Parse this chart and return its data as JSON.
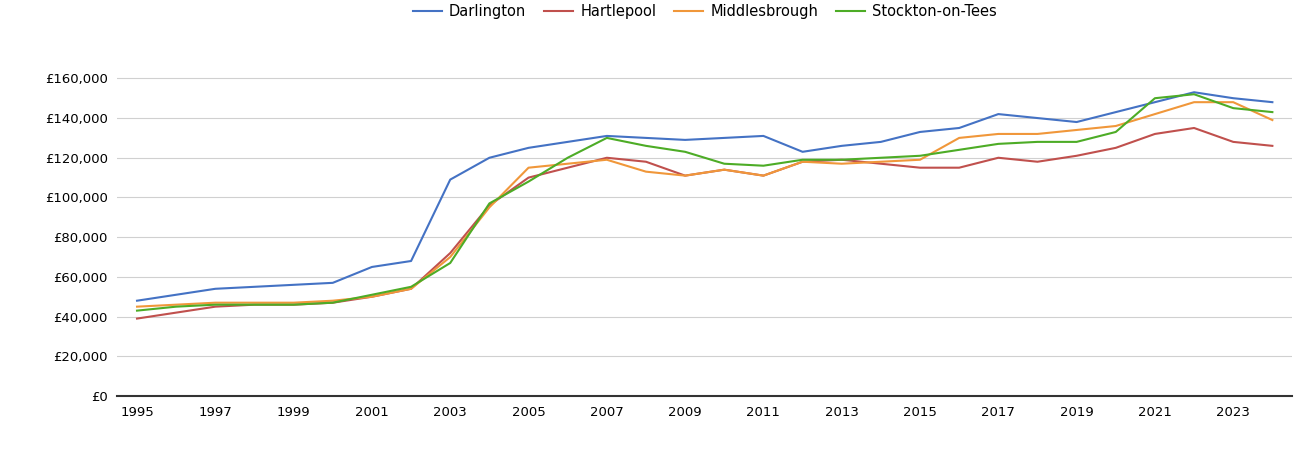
{
  "years": [
    1995,
    1996,
    1997,
    1998,
    1999,
    2000,
    2001,
    2002,
    2003,
    2004,
    2005,
    2006,
    2007,
    2008,
    2009,
    2010,
    2011,
    2012,
    2013,
    2014,
    2015,
    2016,
    2017,
    2018,
    2019,
    2020,
    2021,
    2022,
    2023,
    2024
  ],
  "darlington": [
    48000,
    51000,
    54000,
    55000,
    56000,
    57000,
    65000,
    68000,
    109000,
    120000,
    125000,
    128000,
    131000,
    130000,
    129000,
    130000,
    131000,
    123000,
    126000,
    128000,
    133000,
    135000,
    142000,
    140000,
    138000,
    143000,
    148000,
    153000,
    150000,
    148000
  ],
  "hartlepool": [
    39000,
    42000,
    45000,
    46000,
    46000,
    47000,
    50000,
    54000,
    72000,
    96000,
    110000,
    115000,
    120000,
    118000,
    111000,
    114000,
    111000,
    118000,
    119000,
    117000,
    115000,
    115000,
    120000,
    118000,
    121000,
    125000,
    132000,
    135000,
    128000,
    126000
  ],
  "middlesbrough": [
    45000,
    46000,
    47000,
    47000,
    47000,
    48000,
    50000,
    54000,
    70000,
    95000,
    115000,
    117000,
    119000,
    113000,
    111000,
    114000,
    111000,
    118000,
    117000,
    118000,
    119000,
    130000,
    132000,
    132000,
    134000,
    136000,
    142000,
    148000,
    148000,
    139000
  ],
  "stockton": [
    43000,
    45000,
    46000,
    46000,
    46000,
    47000,
    51000,
    55000,
    67000,
    97000,
    108000,
    120000,
    130000,
    126000,
    123000,
    117000,
    116000,
    119000,
    119000,
    120000,
    121000,
    124000,
    127000,
    128000,
    128000,
    133000,
    150000,
    152000,
    145000,
    143000
  ],
  "colors": {
    "darlington": "#4472c4",
    "hartlepool": "#c0504d",
    "middlesbrough": "#f0973a",
    "stockton": "#4dac26"
  },
  "ylim": [
    0,
    170000
  ],
  "ytick_step": 20000,
  "xlim_left": 1994.5,
  "xlim_right": 2024.5,
  "background_color": "#ffffff",
  "grid_color": "#d0d0d0"
}
